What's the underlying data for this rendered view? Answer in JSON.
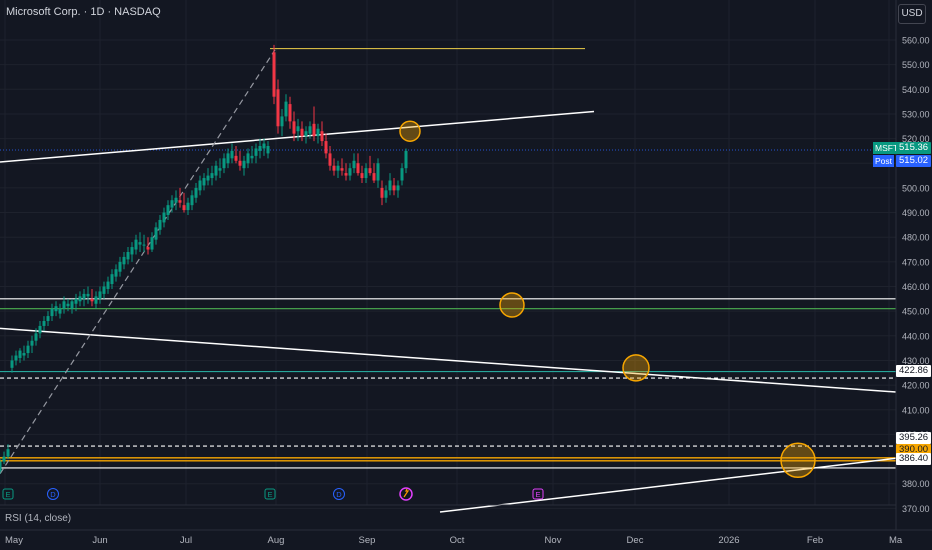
{
  "header": {
    "title": "Microsoft Corp. · 1D · NASDAQ",
    "currency": "USD"
  },
  "indicator": {
    "label": "RSI (14, close)"
  },
  "chart_data": {
    "type": "candlestick",
    "symbol": "MSFT",
    "y_axis": {
      "ticks": [
        560,
        550,
        540,
        530,
        520,
        510,
        500,
        490,
        480,
        470,
        460,
        450,
        440,
        430,
        420,
        410,
        400,
        390,
        380,
        370
      ],
      "tick_labels": [
        "560.00",
        "550.00",
        "540.00",
        "530.00",
        "520.00",
        "510.00",
        "500.00",
        "490.00",
        "480.00",
        "470.00",
        "460.00",
        "450.00",
        "440.00",
        "430.00",
        "420.00",
        "410.00",
        "400.00",
        "390.00",
        "380.00",
        "370.00"
      ]
    },
    "x_axis": {
      "labels": [
        "May",
        "Jun",
        "Jul",
        "Aug",
        "Sep",
        "Oct",
        "Nov",
        "Dec",
        "2026",
        "Feb",
        "Ma"
      ]
    },
    "price_tags": {
      "last": {
        "symbol": "MSFT",
        "value": "515.36",
        "color": "#089981"
      },
      "post": {
        "symbol": "Post",
        "value": "515.02",
        "color": "#2962ff"
      },
      "level_1": {
        "value": "422.86"
      },
      "level_2": {
        "value": "395.26"
      },
      "level_3": {
        "value": "390.00"
      },
      "level_4": {
        "value": "386.40"
      }
    },
    "horizontal_levels": [
      {
        "value": 556.5,
        "color": "#f0d14a",
        "style": "solid",
        "from": "Jul 28",
        "to": "Oct 31"
      },
      {
        "value": 455,
        "color": "#ffffff",
        "style": "solid"
      },
      {
        "value": 451,
        "color": "#4caf50",
        "style": "solid"
      },
      {
        "value": 425.5,
        "color": "#26a69a",
        "style": "solid"
      },
      {
        "value": 422.86,
        "color": "#ffffff",
        "style": "dashed"
      },
      {
        "value": 395.26,
        "color": "#ffffff",
        "style": "dashed"
      },
      {
        "value": 390.5,
        "color": "#f7a600",
        "style": "solid"
      },
      {
        "value": 389.3,
        "color": "#f7a600",
        "style": "solid"
      },
      {
        "value": 386.4,
        "color": "#ffffff",
        "style": "solid"
      }
    ],
    "trend_lines": [
      {
        "color": "#ffffff",
        "style": "solid",
        "from": [
          0,
          510.5
        ],
        "to": [
          594,
          531
        ]
      },
      {
        "color": "#ffffff",
        "style": "solid",
        "from": [
          0,
          443
        ],
        "to": [
          896,
          417.2
        ]
      },
      {
        "color": "#ffffff",
        "style": "solid",
        "from": [
          440,
          368.5
        ],
        "to": [
          896,
          390.3
        ]
      },
      {
        "color": "#9598a1",
        "style": "dashed",
        "from": [
          0,
          384
        ],
        "to": [
          275,
          556
        ]
      }
    ],
    "circle_markers": [
      {
        "x": 410,
        "value": 523,
        "r": 10
      },
      {
        "x": 512,
        "value": 452.5,
        "r": 12
      },
      {
        "x": 636,
        "value": 427,
        "r": 13
      },
      {
        "x": 798,
        "value": 389.5,
        "r": 17
      }
    ],
    "event_markers": [
      {
        "x": 8,
        "label": "E"
      },
      {
        "x": 53,
        "label": "D"
      },
      {
        "x": 270,
        "label": "E"
      },
      {
        "x": 339,
        "label": "D"
      },
      {
        "x": 406,
        "label": ""
      },
      {
        "x": 538,
        "label": "E"
      }
    ],
    "candles": [
      [
        0,
        385,
        390,
        384,
        389
      ],
      [
        4,
        389,
        393,
        388,
        391
      ],
      [
        8,
        391,
        396,
        390,
        394
      ],
      [
        12,
        427,
        432,
        425,
        430
      ],
      [
        16,
        430,
        434,
        428,
        432
      ],
      [
        20,
        431,
        435,
        429,
        434
      ],
      [
        24,
        432,
        436,
        430,
        433
      ],
      [
        28,
        433,
        438,
        431,
        436
      ],
      [
        32,
        436,
        440,
        433,
        438
      ],
      [
        36,
        438,
        443,
        436,
        441
      ],
      [
        40,
        441,
        446,
        439,
        444
      ],
      [
        44,
        444,
        448,
        442,
        446
      ],
      [
        48,
        446,
        450,
        444,
        448
      ],
      [
        52,
        448,
        453,
        446,
        451
      ],
      [
        56,
        450,
        454,
        448,
        452
      ],
      [
        60,
        449,
        453,
        447,
        451
      ],
      [
        64,
        451,
        456,
        449,
        454
      ],
      [
        68,
        452,
        455,
        450,
        453
      ],
      [
        72,
        451,
        455,
        449,
        454
      ],
      [
        76,
        453,
        457,
        450,
        455
      ],
      [
        80,
        454,
        458,
        452,
        456
      ],
      [
        84,
        455,
        459,
        452,
        457
      ],
      [
        88,
        456,
        460,
        453,
        457
      ],
      [
        92,
        455,
        459,
        452,
        454
      ],
      [
        96,
        453,
        458,
        451,
        456
      ],
      [
        100,
        455,
        460,
        453,
        458
      ],
      [
        104,
        457,
        462,
        455,
        460
      ],
      [
        108,
        459,
        464,
        457,
        462
      ],
      [
        112,
        461,
        467,
        459,
        465
      ],
      [
        116,
        464,
        469,
        462,
        467
      ],
      [
        120,
        466,
        472,
        464,
        470
      ],
      [
        124,
        469,
        474,
        467,
        472
      ],
      [
        128,
        471,
        476,
        469,
        474
      ],
      [
        132,
        473,
        478,
        470,
        476
      ],
      [
        136,
        475,
        481,
        473,
        479
      ],
      [
        140,
        477,
        482,
        474,
        478
      ],
      [
        144,
        477,
        481,
        474,
        477
      ],
      [
        148,
        476,
        480,
        473,
        475
      ],
      [
        152,
        475,
        482,
        474,
        480
      ],
      [
        156,
        479,
        486,
        477,
        484
      ],
      [
        160,
        483,
        489,
        481,
        487
      ],
      [
        164,
        486,
        492,
        484,
        490
      ],
      [
        168,
        489,
        495,
        487,
        493
      ],
      [
        172,
        492,
        497,
        490,
        495
      ],
      [
        176,
        494,
        499,
        491,
        496
      ],
      [
        180,
        495,
        500,
        492,
        494
      ],
      [
        184,
        493,
        498,
        490,
        491
      ],
      [
        188,
        491,
        496,
        489,
        494
      ],
      [
        192,
        493,
        499,
        491,
        497
      ],
      [
        196,
        496,
        502,
        494,
        500
      ],
      [
        200,
        499,
        505,
        497,
        503
      ],
      [
        204,
        501,
        506,
        499,
        504
      ],
      [
        208,
        503,
        508,
        501,
        505
      ],
      [
        212,
        504,
        509,
        501,
        506
      ],
      [
        216,
        505,
        511,
        503,
        509
      ],
      [
        220,
        507,
        512,
        504,
        508
      ],
      [
        224,
        508,
        514,
        506,
        512
      ],
      [
        228,
        510,
        516,
        508,
        514
      ],
      [
        232,
        512,
        518,
        510,
        515
      ],
      [
        236,
        513,
        517,
        510,
        511
      ],
      [
        240,
        511,
        515,
        507,
        509
      ],
      [
        244,
        508,
        513,
        505,
        511
      ],
      [
        248,
        510,
        516,
        508,
        514
      ],
      [
        252,
        512,
        517,
        510,
        513
      ],
      [
        256,
        513,
        518,
        510,
        516
      ],
      [
        260,
        515,
        520,
        512,
        517
      ],
      [
        264,
        516,
        520,
        513,
        518
      ],
      [
        268,
        514,
        519,
        512,
        517
      ],
      [
        274,
        555,
        558,
        534,
        537
      ],
      [
        278,
        540,
        544,
        522,
        525
      ],
      [
        282,
        525,
        532,
        521,
        529
      ],
      [
        286,
        529,
        538,
        527,
        535
      ],
      [
        290,
        534,
        537,
        524,
        527
      ],
      [
        294,
        527,
        531,
        519,
        522
      ],
      [
        298,
        523,
        528,
        519,
        525
      ],
      [
        302,
        524,
        527,
        519,
        521
      ],
      [
        306,
        521,
        525,
        518,
        523
      ],
      [
        310,
        522,
        527,
        520,
        525
      ],
      [
        314,
        526,
        533,
        519,
        521
      ],
      [
        318,
        521,
        526,
        518,
        524
      ],
      [
        322,
        523,
        527,
        517,
        519
      ],
      [
        326,
        519,
        522,
        512,
        514
      ],
      [
        330,
        514,
        517,
        507,
        509
      ],
      [
        334,
        509,
        512,
        505,
        507
      ],
      [
        338,
        507,
        511,
        504,
        509
      ],
      [
        342,
        508,
        512,
        505,
        507
      ],
      [
        346,
        506,
        510,
        503,
        505
      ],
      [
        350,
        505,
        510,
        503,
        508
      ],
      [
        354,
        508,
        514,
        506,
        511
      ],
      [
        358,
        510,
        514,
        505,
        506
      ],
      [
        362,
        506,
        509,
        502,
        504
      ],
      [
        366,
        504,
        510,
        502,
        508
      ],
      [
        370,
        508,
        513,
        505,
        506
      ],
      [
        374,
        506,
        510,
        502,
        503
      ],
      [
        378,
        503,
        512,
        500,
        510
      ],
      [
        382,
        500,
        503,
        493,
        496
      ],
      [
        386,
        496,
        501,
        494,
        499
      ],
      [
        390,
        499,
        506,
        497,
        503
      ],
      [
        394,
        501,
        504,
        497,
        499
      ],
      [
        398,
        499,
        503,
        496,
        501
      ],
      [
        402,
        503,
        510,
        501,
        508
      ],
      [
        406,
        508,
        516,
        506,
        515
      ]
    ]
  }
}
